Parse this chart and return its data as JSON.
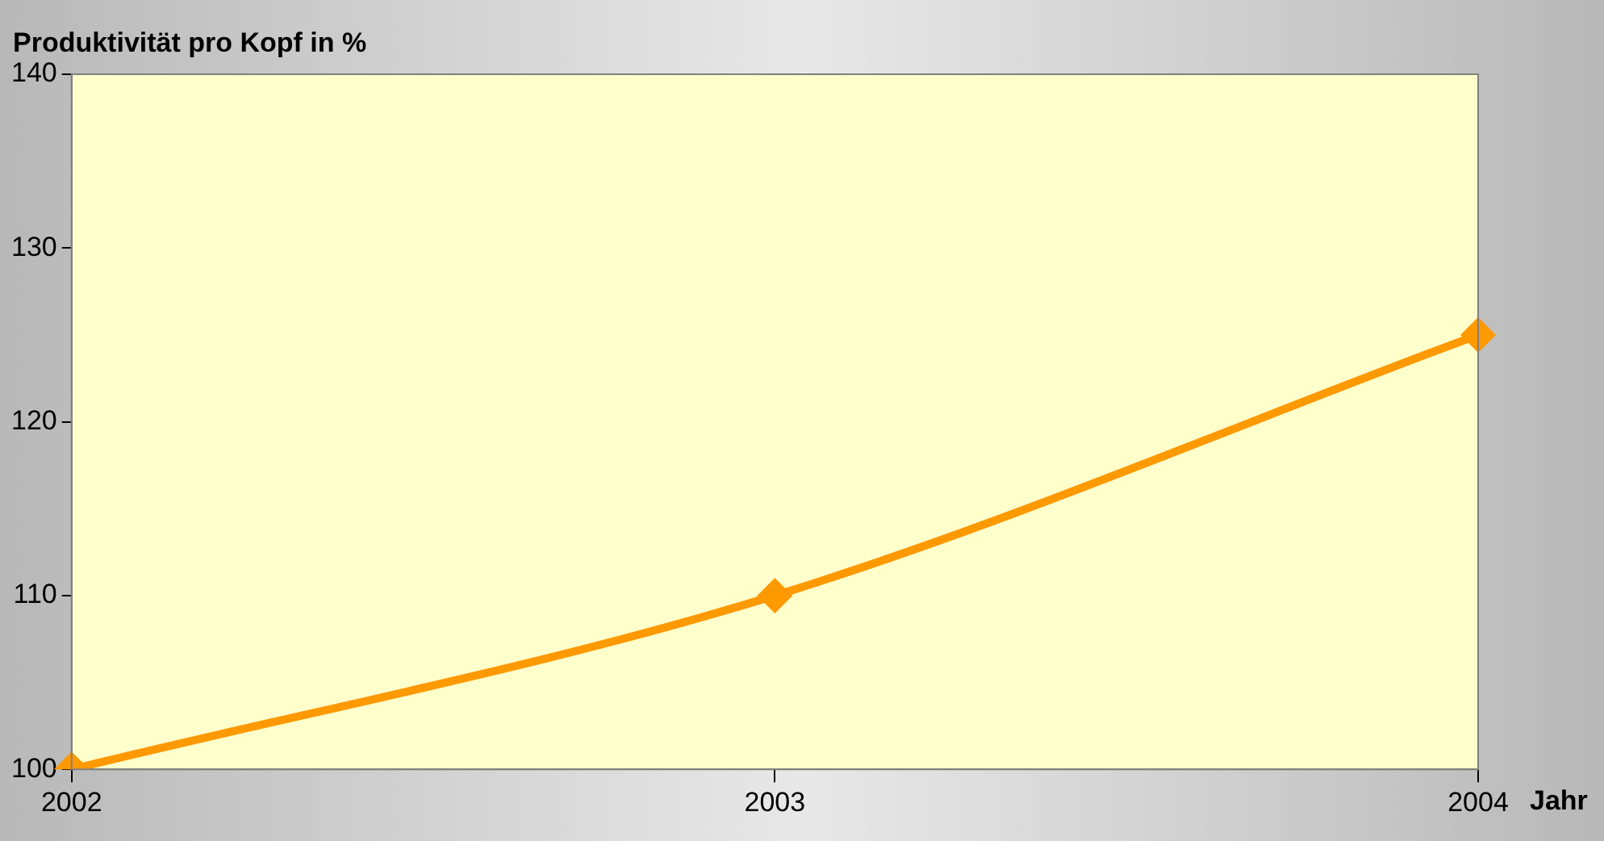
{
  "chart_data": {
    "type": "line",
    "ylabel": "Produktivität pro Kopf in %",
    "xlabel": "Jahr",
    "categories": [
      "2002",
      "2003",
      "2004"
    ],
    "series": [
      {
        "color": "#ff9900",
        "values": [
          100,
          110,
          125
        ]
      }
    ],
    "ylim": [
      100,
      140
    ],
    "yticks": [
      100,
      110,
      120,
      130,
      140
    ],
    "grid": false,
    "legend": false,
    "marker": "diamond",
    "line_style": "solid"
  }
}
